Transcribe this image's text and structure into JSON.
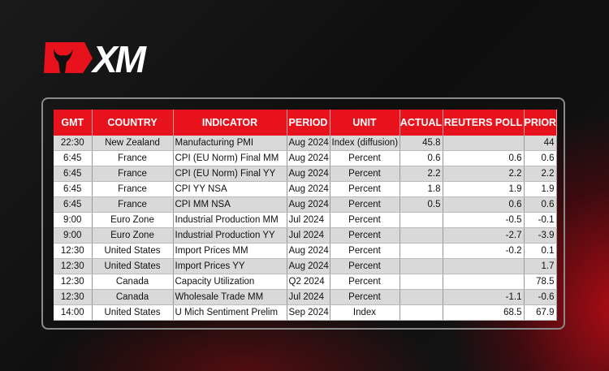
{
  "brand": {
    "logo_text": "XM",
    "accent": "#e8121c"
  },
  "table": {
    "headers": [
      "GMT",
      "COUNTRY",
      "INDICATOR",
      "PERIOD",
      "UNIT",
      "ACTUAL",
      "REUTERS POLL",
      "PRIOR"
    ],
    "rows": [
      [
        "22:30",
        "New Zealand",
        "Manufacturing PMI",
        "Aug 2024",
        "Index (diffusion)",
        "45.8",
        "",
        "44"
      ],
      [
        "6:45",
        "France",
        "CPI (EU Norm) Final MM",
        "Aug 2024",
        "Percent",
        "0.6",
        "0.6",
        "0.6"
      ],
      [
        "6:45",
        "France",
        "CPI (EU Norm) Final YY",
        "Aug 2024",
        "Percent",
        "2.2",
        "2.2",
        "2.2"
      ],
      [
        "6:45",
        "France",
        "CPI YY NSA",
        "Aug 2024",
        "Percent",
        "1.8",
        "1.9",
        "1.9"
      ],
      [
        "6:45",
        "France",
        "CPI MM NSA",
        "Aug 2024",
        "Percent",
        "0.5",
        "0.6",
        "0.6"
      ],
      [
        "9:00",
        "Euro Zone",
        "Industrial Production MM",
        "Jul 2024",
        "Percent",
        "",
        "-0.5",
        "-0.1"
      ],
      [
        "9:00",
        "Euro Zone",
        "Industrial Production YY",
        "Jul 2024",
        "Percent",
        "",
        "-2.7",
        "-3.9"
      ],
      [
        "12:30",
        "United States",
        "Import Prices MM",
        "Aug 2024",
        "Percent",
        "",
        "-0.2",
        "0.1"
      ],
      [
        "12:30",
        "United States",
        "Import Prices YY",
        "Aug 2024",
        "Percent",
        "",
        "",
        "1.7"
      ],
      [
        "12:30",
        "Canada",
        "Capacity Utilization",
        "Q2 2024",
        "Percent",
        "",
        "",
        "78.5"
      ],
      [
        "12:30",
        "Canada",
        "Wholesale Trade MM",
        "Jul 2024",
        "Percent",
        "",
        "-1.1",
        "-0.6"
      ],
      [
        "14:00",
        "United States",
        "U Mich Sentiment Prelim",
        "Sep 2024",
        "Index",
        "",
        "68.5",
        "67.9"
      ]
    ]
  }
}
